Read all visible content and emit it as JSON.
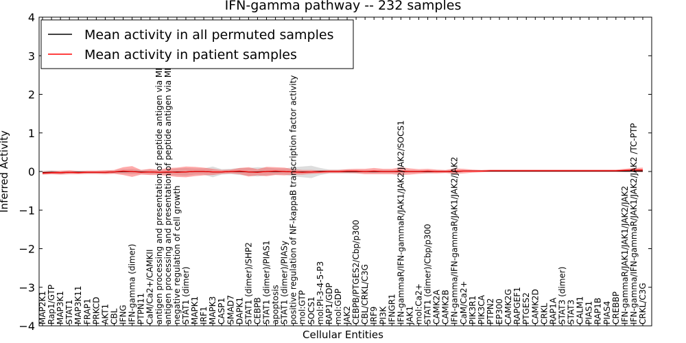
{
  "chart_data": {
    "type": "line",
    "title": "IFN-gamma pathway -- 232 samples",
    "xlabel": "Cellular Entities",
    "ylabel": "Inferred Activity",
    "ylim": [
      -4,
      4
    ],
    "yticks": [
      "4",
      "3",
      "2",
      "1",
      "0",
      "−1",
      "−2",
      "−3",
      "−4"
    ],
    "ytick_values": [
      4,
      3,
      2,
      1,
      0,
      -1,
      -2,
      -3,
      -4
    ],
    "legend": {
      "position": "top-left",
      "entries": [
        {
          "label": "Mean activity in all permuted samples",
          "color": "#000000"
        },
        {
          "label": "Mean activity in patient samples",
          "color": "#ff0000"
        }
      ]
    },
    "categories": [
      "MAP2K1",
      "Rap1/GTP",
      "MAP3K1",
      "STAT1",
      "MAP3K11",
      "FRAP1",
      "PRKCD",
      "AKT1",
      "CBL",
      "IFNG",
      "IFN-gamma (dimer)",
      "PTPN11",
      "CaM/Ca2+/CAMKII",
      "antigen processing and presentation of peptide antigen via MHC class I",
      "antigen processing and presentation of peptide antigen via MHC class II",
      "negative regulation of cell growth",
      "STAT1 (dimer)",
      "MAPK1",
      "IRF1",
      "MAPK3",
      "CASP1",
      "SMAD7",
      "DAPK1",
      "STAT1 (dimer)/SHP2",
      "CEBPB",
      "STAT1 (dimer)/PIAS1",
      "apoptosis",
      "STAT1 (dimer)/PIASy",
      "positive regulation of NF-kappaB transcription factor activity",
      "mol:GTP",
      "SOCS1",
      "mol:PI-3-4-5-P3",
      "RAP1/GDP",
      "mol:GDP",
      "JAK2",
      "CEBPB/PTGES2/Cbp/p300",
      "CBL/CRKL/C3G",
      "IRF9",
      "PI3K",
      "IFNGR1",
      "IFN-gammaR/IFN-gammaR/JAK1/JAK2/JAK2/SOCS1",
      "JAK1",
      "mol:Ca2+",
      "STAT1 (dimer)/Cbp/p300",
      "CAMK2A",
      "CAMK2B",
      "IFN-gamma/IFN-gammaR/JAK1/JAK2/JAK2",
      "CaM/Ca2+",
      "PIK3R1",
      "PIK3CA",
      "PTPN2",
      "EP300",
      "CAMK2G",
      "RAPGEF1",
      "PTGES2",
      "CAMK2D",
      "CRKL",
      "RAP1A",
      "STAT3 (dimer)",
      "STAT3",
      "CALM1",
      "PIAS1",
      "RAP1B",
      "PIAS4",
      "CREBBP",
      "IFN-gammaR/JAK1/JAK1/JAK2/JAK2",
      "IFN-gamma/IFN-gammaR/JAK1/JAK2/JAK2 /TC-PTP",
      "CRKL/C3G"
    ],
    "series": [
      {
        "name": "Mean activity in all permuted samples",
        "color": "#000000",
        "values": [
          -0.03,
          -0.02,
          -0.03,
          -0.02,
          -0.02,
          -0.02,
          -0.02,
          -0.02,
          -0.01,
          0.0,
          0.0,
          -0.01,
          -0.01,
          -0.02,
          -0.02,
          -0.01,
          -0.01,
          0.0,
          0.0,
          -0.01,
          -0.01,
          0.0,
          0.0,
          -0.01,
          -0.01,
          0.0,
          0.0,
          0.0,
          -0.01,
          -0.01,
          -0.01,
          0.0,
          0.0,
          0.0,
          0.0,
          0.0,
          0.0,
          0.0,
          0.0,
          0.0,
          0.0,
          0.0,
          0.0,
          0.0,
          0.0,
          0.0,
          0.0,
          0.01,
          0.01,
          0.01,
          0.01,
          0.01,
          0.01,
          0.01,
          0.01,
          0.01,
          0.01,
          0.01,
          0.01,
          0.01,
          0.01,
          0.01,
          0.01,
          0.01,
          0.01,
          0.01,
          0.01,
          0.01
        ]
      },
      {
        "name": "Mean activity in patient samples",
        "color": "#ff0000",
        "values": [
          -0.04,
          -0.03,
          -0.03,
          -0.02,
          -0.03,
          -0.02,
          -0.02,
          -0.02,
          -0.01,
          0.01,
          0.0,
          -0.02,
          -0.01,
          -0.02,
          -0.01,
          -0.02,
          -0.01,
          0.0,
          0.0,
          -0.01,
          -0.01,
          0.0,
          0.01,
          -0.01,
          -0.02,
          0.0,
          0.01,
          0.0,
          -0.01,
          -0.02,
          -0.01,
          -0.01,
          0.0,
          0.0,
          0.01,
          0.01,
          0.0,
          0.01,
          0.0,
          0.0,
          0.01,
          0.0,
          0.0,
          0.01,
          0.0,
          0.0,
          0.01,
          0.01,
          0.01,
          0.01,
          0.02,
          0.02,
          0.02,
          0.02,
          0.02,
          0.02,
          0.02,
          0.02,
          0.02,
          0.02,
          0.02,
          0.02,
          0.02,
          0.02,
          0.02,
          0.03,
          0.04,
          0.04
        ]
      }
    ],
    "permuted_band_halfwidth": [
      0.05,
      0.05,
      0.04,
      0.04,
      0.04,
      0.04,
      0.04,
      0.04,
      0.04,
      0.06,
      0.07,
      0.05,
      0.06,
      0.05,
      0.07,
      0.09,
      0.1,
      0.08,
      0.08,
      0.14,
      0.07,
      0.07,
      0.09,
      0.1,
      0.12,
      0.1,
      0.08,
      0.08,
      0.12,
      0.14,
      0.16,
      0.09,
      0.05,
      0.05,
      0.05,
      0.04,
      0.04,
      0.04,
      0.04,
      0.04,
      0.04,
      0.03,
      0.03,
      0.03,
      0.03,
      0.03,
      0.03,
      0.02,
      0.02,
      0.02,
      0.02,
      0.02,
      0.02,
      0.02,
      0.02,
      0.02,
      0.02,
      0.02,
      0.02,
      0.02,
      0.02,
      0.02,
      0.02,
      0.02,
      0.02,
      0.03,
      0.03,
      0.03
    ],
    "patient_band_halfwidth": [
      0.04,
      0.04,
      0.05,
      0.05,
      0.04,
      0.04,
      0.04,
      0.05,
      0.05,
      0.1,
      0.14,
      0.06,
      0.08,
      0.07,
      0.1,
      0.12,
      0.14,
      0.12,
      0.1,
      0.08,
      0.05,
      0.05,
      0.08,
      0.12,
      0.08,
      0.12,
      0.1,
      0.1,
      0.07,
      0.06,
      0.05,
      0.04,
      0.04,
      0.04,
      0.05,
      0.06,
      0.07,
      0.08,
      0.07,
      0.07,
      0.1,
      0.08,
      0.06,
      0.06,
      0.05,
      0.04,
      0.07,
      0.06,
      0.04,
      0.03,
      0.03,
      0.03,
      0.03,
      0.03,
      0.03,
      0.03,
      0.03,
      0.03,
      0.03,
      0.03,
      0.03,
      0.03,
      0.03,
      0.03,
      0.03,
      0.04,
      0.05,
      0.06
    ],
    "grid": false
  }
}
